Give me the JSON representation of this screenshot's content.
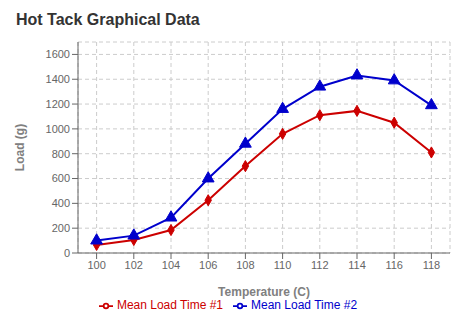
{
  "chart_data": {
    "type": "line",
    "title": "Hot Tack Graphical Data",
    "xlabel": "Temperature (C)",
    "ylabel": "Load (g)",
    "x": [
      100,
      102,
      104,
      106,
      108,
      110,
      112,
      114,
      116,
      118
    ],
    "series": [
      {
        "name": "Mean Load Time #1",
        "color": "#cc0000",
        "marker": "diamond",
        "values": [
          65,
          105,
          185,
          425,
          700,
          960,
          1110,
          1145,
          1050,
          810
        ]
      },
      {
        "name": "Mean Load Time #2",
        "color": "#0000cc",
        "marker": "triangle",
        "values": [
          100,
          140,
          285,
          600,
          880,
          1160,
          1340,
          1430,
          1390,
          1190
        ]
      }
    ],
    "xlim": [
      99,
      119
    ],
    "ylim": [
      0,
      1700
    ],
    "xticks": [
      100,
      102,
      104,
      106,
      108,
      110,
      112,
      114,
      116,
      118
    ],
    "yticks": [
      0,
      200,
      400,
      600,
      800,
      1000,
      1200,
      1400,
      1600
    ],
    "grid": true,
    "legend": "bottom"
  }
}
